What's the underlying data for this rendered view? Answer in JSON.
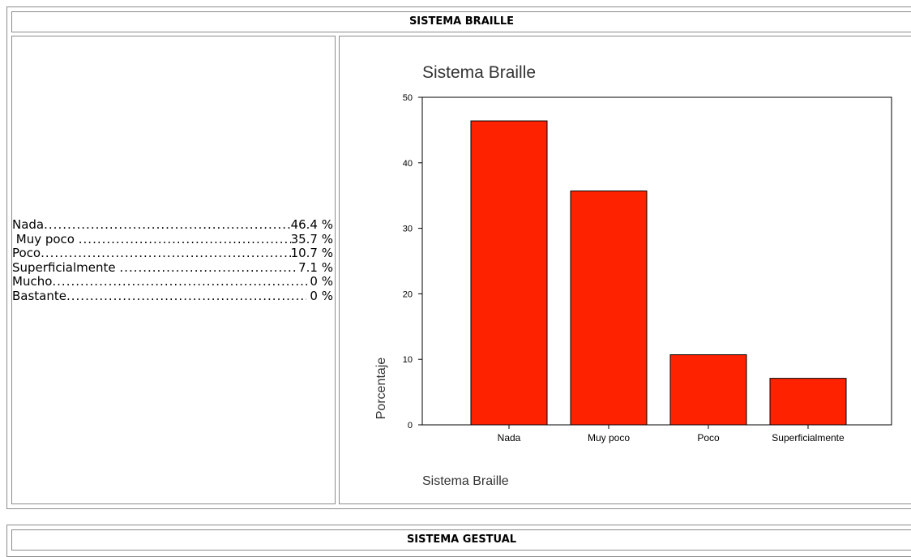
{
  "sections": {
    "braille": {
      "header": "SISTEMA BRAILLE"
    },
    "gestual": {
      "header": "SISTEMA GESTUAL"
    }
  },
  "stats": [
    {
      "label": "Nada",
      "value": "46.4 %"
    },
    {
      "label": " Muy poco ",
      "value": "35.7 %"
    },
    {
      "label": "Poco",
      "value": "10.7 %"
    },
    {
      "label": "Superficialmente ",
      "value": "7.1 %"
    },
    {
      "label": "Mucho",
      "value": "0 %"
    },
    {
      "label": "Bastante",
      "value": " 0 %"
    }
  ],
  "chart_data": {
    "type": "bar",
    "title": "Sistema Braille",
    "xlabel": "Sistema Braille",
    "ylabel": "Porcentaje",
    "categories": [
      "Nada",
      "Muy poco",
      "Poco",
      "Superficialmente"
    ],
    "values": [
      46.4,
      35.7,
      10.7,
      7.1
    ],
    "ylim": [
      0,
      50
    ],
    "yticks": [
      0,
      10,
      20,
      30,
      40,
      50
    ],
    "grid": false,
    "bar_color": "#ff2200"
  }
}
